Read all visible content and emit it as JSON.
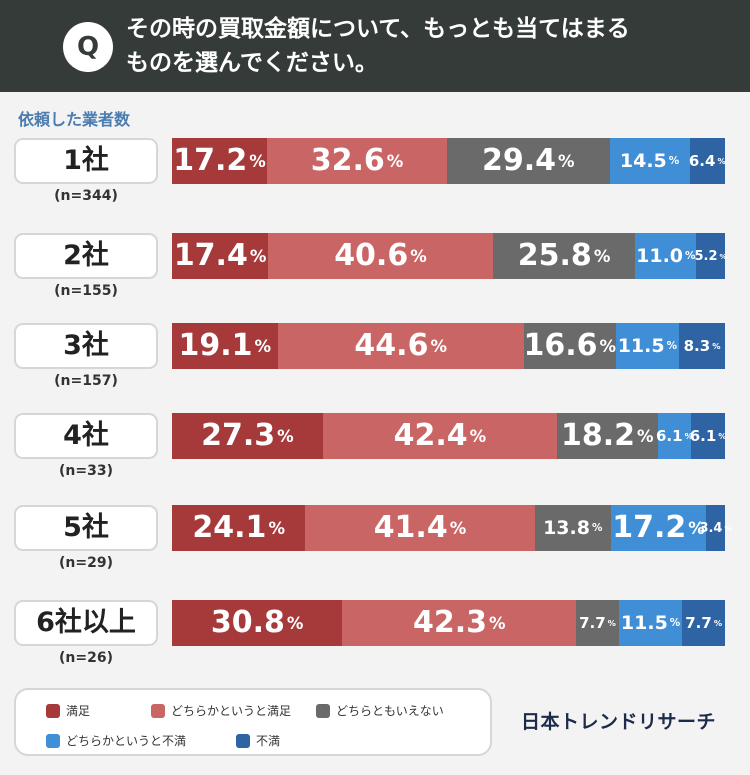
{
  "header": {
    "badge": "Q",
    "question_line1": "その時の買取金額について、もっとも当てはまる",
    "question_line2": "ものを選んでください。"
  },
  "count_label": "依頼した業者数",
  "brand": "日本トレンドリサーチ",
  "colors": {
    "header_bg": "#353b38",
    "satisfied": "#a63a3a",
    "somewhat_satisfied": "#c96565",
    "neutral": "#6a6a6a",
    "somewhat_dissatisfied": "#3f8ed6",
    "dissatisfied": "#2e64a4"
  },
  "chart_data": {
    "type": "bar",
    "orientation": "horizontal-stacked-100",
    "unit": "%",
    "categories": [
      "1社",
      "2社",
      "3社",
      "4社",
      "5社",
      "6社以上"
    ],
    "sample_sizes": [
      "(n=344)",
      "(n=155)",
      "(n=157)",
      "(n=33)",
      "(n=29)",
      "(n=26)"
    ],
    "series": [
      {
        "name": "満足",
        "color": "#a63a3a",
        "values": [
          17.2,
          17.4,
          19.1,
          27.3,
          24.1,
          30.8
        ]
      },
      {
        "name": "どちらかというと満足",
        "color": "#c96565",
        "values": [
          32.6,
          40.6,
          44.6,
          42.4,
          41.4,
          42.3
        ]
      },
      {
        "name": "どちらともいえない",
        "color": "#6a6a6a",
        "values": [
          29.4,
          25.8,
          16.6,
          18.2,
          13.8,
          7.7
        ]
      },
      {
        "name": "どちらかというと不満",
        "color": "#3f8ed6",
        "values": [
          14.5,
          11.0,
          11.5,
          6.1,
          17.2,
          11.5
        ]
      },
      {
        "name": "不満",
        "color": "#2e64a4",
        "values": [
          6.4,
          5.2,
          8.3,
          6.1,
          3.4,
          7.7
        ]
      }
    ],
    "legend_position": "bottom-left"
  }
}
